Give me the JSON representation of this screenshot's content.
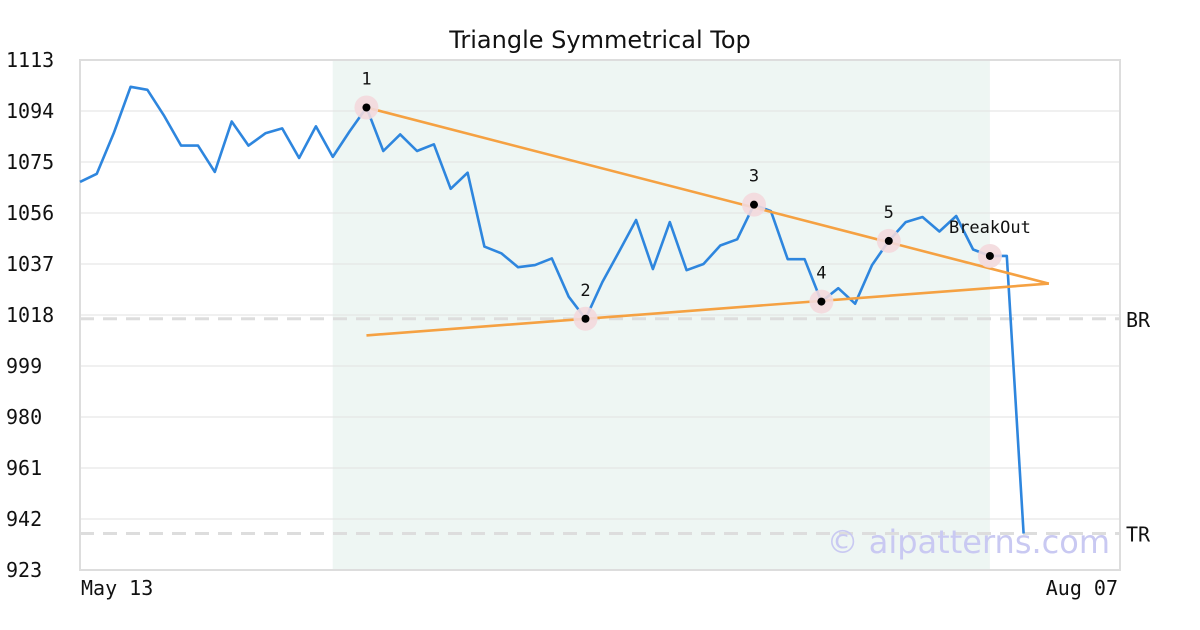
{
  "chart_data": {
    "type": "line",
    "title": "Triangle Symmetrical Top",
    "xlabel": "",
    "ylabel": "",
    "x_tick_labels": [
      "May 13",
      "Aug 07"
    ],
    "y_ticks": [
      923,
      942,
      961,
      980,
      999,
      1018,
      1037,
      1056,
      1075,
      1094,
      1113
    ],
    "ylim": [
      923,
      1113
    ],
    "grid": "horizontal",
    "series": [
      {
        "color": "#2e86de",
        "values": [
          1067.6,
          1070.6,
          1085.7,
          1103.0,
          1101.9,
          1092.1,
          1081.1,
          1081.1,
          1071.3,
          1090.1,
          1081.1,
          1085.7,
          1087.5,
          1076.5,
          1088.3,
          1076.9,
          1086.4,
          1095.3,
          1079.1,
          1085.3,
          1079.1,
          1081.6,
          1065.0,
          1071.0,
          1043.5,
          1041.0,
          1035.8,
          1036.6,
          1039.1,
          1024.8,
          1016.6,
          1030.3,
          1041.7,
          1053.4,
          1035.1,
          1052.6,
          1034.7,
          1037.0,
          1043.9,
          1046.2,
          1059.1,
          1056.7,
          1038.8,
          1038.8,
          1023.0,
          1028.0,
          1022.2,
          1036.6,
          1045.6,
          1052.6,
          1054.5,
          1049.1,
          1054.9,
          1042.4,
          1040.0,
          1040.0,
          936.6
        ]
      },
      {
        "name": "triangle-upper",
        "color": "#f5a142",
        "points": [
          [
            17,
            1095.3
          ],
          [
            57.5,
            1029.7
          ]
        ]
      },
      {
        "name": "triangle-lower",
        "color": "#f5a142",
        "points": [
          [
            17,
            1010.4
          ],
          [
            57.5,
            1029.7
          ]
        ]
      }
    ],
    "pivots": [
      {
        "label": "1",
        "index": 17,
        "value": 1095.3
      },
      {
        "label": "2",
        "index": 30,
        "value": 1016.6
      },
      {
        "label": "3",
        "index": 40,
        "value": 1059.1
      },
      {
        "label": "4",
        "index": 44,
        "value": 1023.0
      },
      {
        "label": "5",
        "index": 48,
        "value": 1045.6
      },
      {
        "label": "BreakOut",
        "index": 54,
        "value": 1040.0
      }
    ],
    "highlight_range": {
      "from_index": 15,
      "to_index": 54
    },
    "reference_lines": [
      {
        "label": "BR",
        "value": 1016.6
      },
      {
        "label": "TR",
        "value": 936.6
      }
    ],
    "watermark": "© aipatterns.com"
  }
}
